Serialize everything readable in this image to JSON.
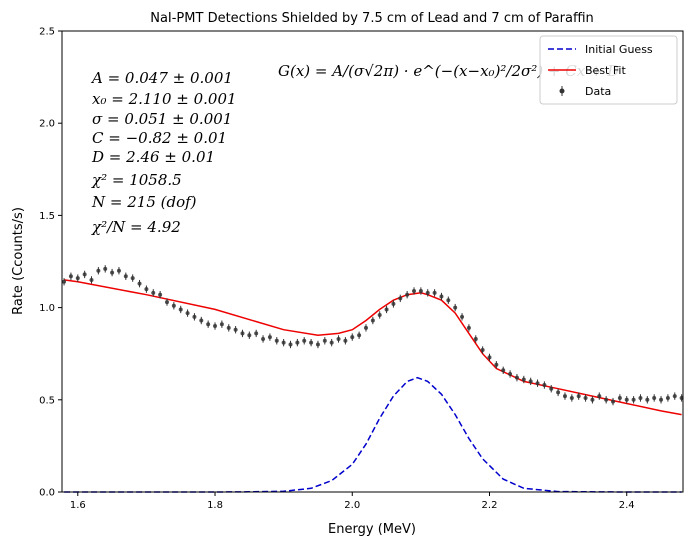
{
  "chart_data": {
    "type": "scatter",
    "title": "NaI-PMT Detections Shielded by 7.5 cm of Lead and 7 cm of Paraffin",
    "xlabel": "Energy (MeV)",
    "ylabel": "Rate (Ccounts/s)",
    "xlim": [
      1.577,
      2.482
    ],
    "ylim": [
      0,
      2.5
    ],
    "xticks": [
      1.6,
      1.8,
      2.0,
      2.2,
      2.4
    ],
    "xtick_labels": [
      "1.6",
      "1.8",
      "2.0",
      "2.2",
      "2.4"
    ],
    "yticks": [
      0.0,
      0.5,
      1.0,
      1.5,
      2.0,
      2.5
    ],
    "ytick_labels": [
      "0.0",
      "0.5",
      "1.0",
      "1.5",
      "2.0",
      "2.5"
    ],
    "grid": false,
    "legend_placement": "top-right",
    "formula_text": "G(x) = A/(σ√2π) · e^(−(x−x₀)²/2σ²) + Cx + D",
    "annotations": [
      "A = 0.047 ± 0.001",
      "x₀ = 2.110 ± 0.001",
      "σ = 0.051 ± 0.001",
      "C = −0.82 ± 0.01",
      "D = 2.46 ± 0.01",
      "χ² = 1058.5",
      "N = 215 (dof)",
      "χ²/N = 4.92"
    ],
    "series": [
      {
        "name": "Initial Guess",
        "kind": "line",
        "style": "dashed",
        "color": "#0000cc",
        "x": [
          1.58,
          1.6,
          1.7,
          1.8,
          1.85,
          1.9,
          1.94,
          1.97,
          2.0,
          2.02,
          2.04,
          2.06,
          2.08,
          2.095,
          2.11,
          2.13,
          2.15,
          2.17,
          2.19,
          2.22,
          2.25,
          2.3,
          2.4,
          2.48
        ],
        "y": [
          0.0,
          0.0,
          0.0,
          0.0,
          0.001,
          0.004,
          0.02,
          0.062,
          0.15,
          0.26,
          0.4,
          0.52,
          0.6,
          0.62,
          0.6,
          0.53,
          0.42,
          0.29,
          0.18,
          0.07,
          0.02,
          0.002,
          0.0,
          0.0
        ]
      },
      {
        "name": "Best Fit",
        "kind": "line",
        "style": "solid",
        "color": "#ee0000",
        "x": [
          1.58,
          1.6,
          1.7,
          1.8,
          1.9,
          1.95,
          1.98,
          2.0,
          2.02,
          2.04,
          2.06,
          2.08,
          2.1,
          2.11,
          2.13,
          2.15,
          2.17,
          2.19,
          2.21,
          2.25,
          2.3,
          2.35,
          2.4,
          2.45,
          2.48
        ],
        "y": [
          1.15,
          1.14,
          1.07,
          0.99,
          0.88,
          0.85,
          0.86,
          0.88,
          0.93,
          0.99,
          1.04,
          1.07,
          1.08,
          1.07,
          1.04,
          0.97,
          0.86,
          0.75,
          0.67,
          0.6,
          0.56,
          0.52,
          0.48,
          0.44,
          0.42
        ]
      },
      {
        "name": "Data",
        "kind": "errorbar",
        "color": "#333333",
        "error": 0.02,
        "x": [
          1.58,
          1.59,
          1.6,
          1.61,
          1.62,
          1.63,
          1.64,
          1.65,
          1.66,
          1.67,
          1.68,
          1.69,
          1.7,
          1.71,
          1.72,
          1.73,
          1.74,
          1.75,
          1.76,
          1.77,
          1.78,
          1.79,
          1.8,
          1.81,
          1.82,
          1.83,
          1.84,
          1.85,
          1.86,
          1.87,
          1.88,
          1.89,
          1.9,
          1.91,
          1.92,
          1.93,
          1.94,
          1.95,
          1.96,
          1.97,
          1.98,
          1.99,
          2.0,
          2.01,
          2.02,
          2.03,
          2.04,
          2.05,
          2.06,
          2.07,
          2.08,
          2.09,
          2.1,
          2.11,
          2.12,
          2.13,
          2.14,
          2.15,
          2.16,
          2.17,
          2.18,
          2.19,
          2.2,
          2.21,
          2.22,
          2.23,
          2.24,
          2.25,
          2.26,
          2.27,
          2.28,
          2.29,
          2.3,
          2.31,
          2.32,
          2.33,
          2.34,
          2.35,
          2.36,
          2.37,
          2.38,
          2.39,
          2.4,
          2.41,
          2.42,
          2.43,
          2.44,
          2.45,
          2.46,
          2.47,
          2.48
        ],
        "y": [
          1.14,
          1.17,
          1.16,
          1.18,
          1.15,
          1.2,
          1.21,
          1.19,
          1.2,
          1.17,
          1.16,
          1.13,
          1.1,
          1.08,
          1.07,
          1.03,
          1.01,
          0.99,
          0.97,
          0.95,
          0.93,
          0.91,
          0.9,
          0.91,
          0.89,
          0.88,
          0.86,
          0.85,
          0.86,
          0.83,
          0.84,
          0.82,
          0.81,
          0.8,
          0.81,
          0.82,
          0.81,
          0.8,
          0.82,
          0.81,
          0.83,
          0.82,
          0.84,
          0.85,
          0.89,
          0.93,
          0.96,
          0.99,
          1.02,
          1.05,
          1.07,
          1.09,
          1.09,
          1.08,
          1.08,
          1.06,
          1.04,
          1.0,
          0.95,
          0.89,
          0.83,
          0.77,
          0.73,
          0.69,
          0.66,
          0.64,
          0.62,
          0.61,
          0.6,
          0.59,
          0.58,
          0.56,
          0.54,
          0.52,
          0.51,
          0.52,
          0.51,
          0.5,
          0.52,
          0.5,
          0.49,
          0.51,
          0.5,
          0.5,
          0.51,
          0.5,
          0.51,
          0.5,
          0.51,
          0.52,
          0.51
        ]
      }
    ]
  }
}
